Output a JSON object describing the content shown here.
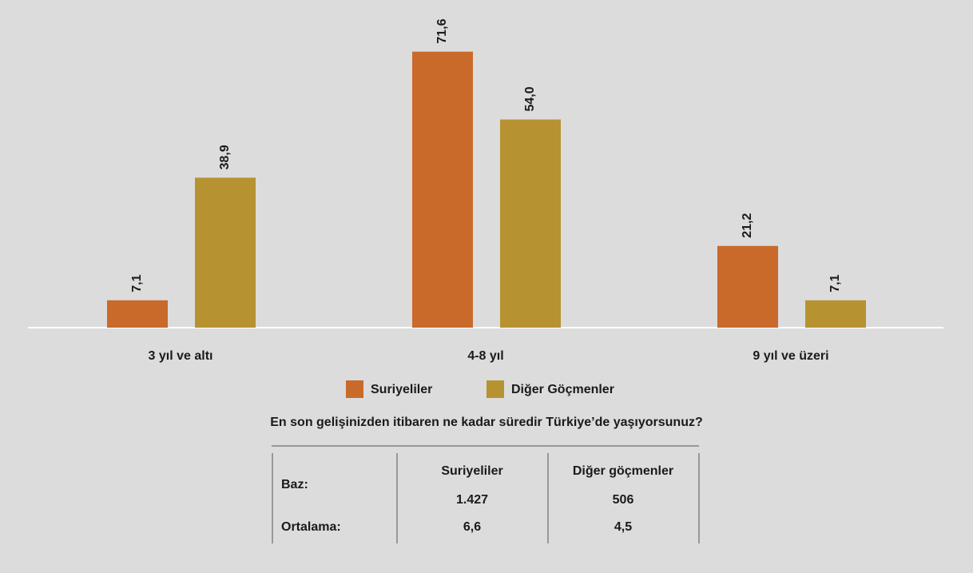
{
  "chart_data": {
    "type": "bar",
    "title": "En son gelişinizden itibaren ne kadar süredir Türkiye’de yaşıyorsunuz?",
    "categories": [
      "3 yıl ve altı",
      "4-8 yıl",
      "9 yıl ve üzeri"
    ],
    "series": [
      {
        "name": "Suriyeliler",
        "color": "#c96a2b",
        "values": [
          7.1,
          71.6,
          21.2
        ],
        "value_labels": [
          "7,1",
          "71,6",
          "21,2"
        ]
      },
      {
        "name": "Diğer Göçmenler",
        "color": "#b79230",
        "values": [
          38.9,
          54.0,
          7.1
        ],
        "value_labels": [
          "38,9",
          "54,0",
          "7,1"
        ]
      }
    ],
    "ylim": [
      0,
      85
    ]
  },
  "table": {
    "header": [
      "Suriyeliler",
      "Diğer göçmenler"
    ],
    "rows": [
      [
        "Baz:",
        "1.427",
        "506"
      ],
      [
        "Ortalama:",
        "6,6",
        "4,5"
      ]
    ]
  }
}
